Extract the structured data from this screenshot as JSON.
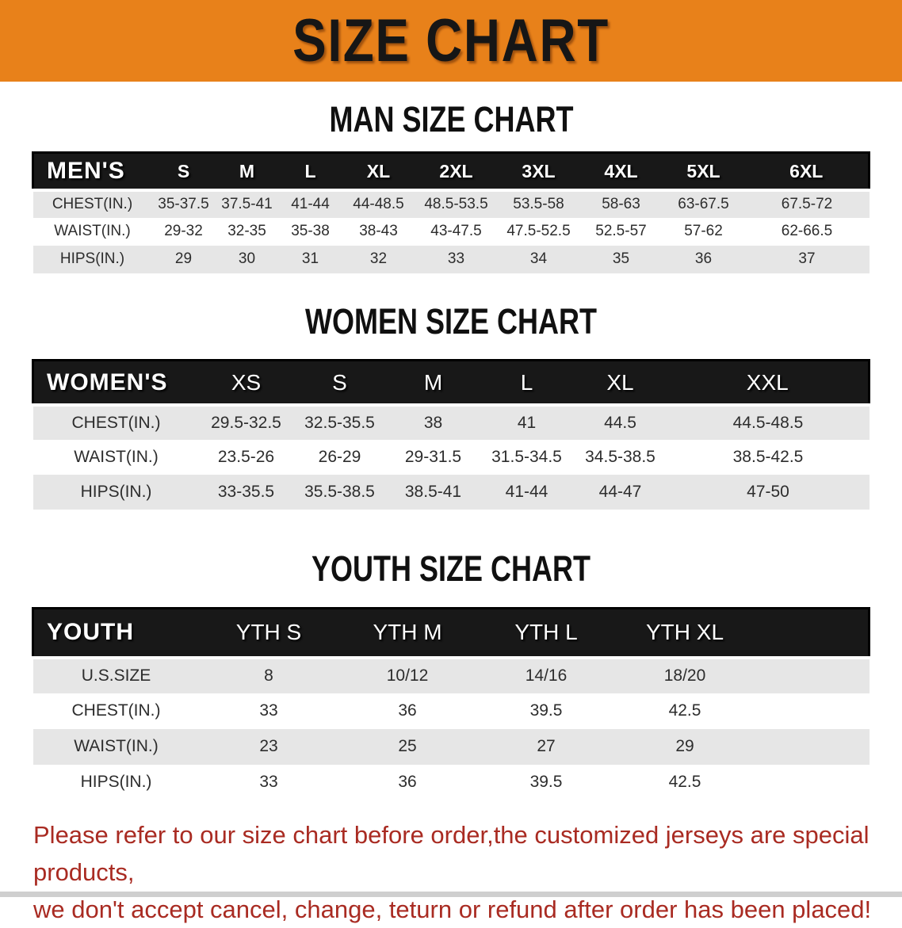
{
  "banner": {
    "title": "SIZE CHART"
  },
  "colors": {
    "banner_bg": "#E8811A",
    "header_bar": "#181818",
    "row_stripe": "#E6E6E6",
    "footer_text": "#A92B22"
  },
  "man_chart": {
    "heading": "MAN SIZE CHART",
    "columns": [
      "MEN'S",
      "S",
      "M",
      "L",
      "XL",
      "2XL",
      "3XL",
      "4XL",
      "5XL",
      "6XL"
    ],
    "rows": [
      {
        "label": "CHEST(IN.)",
        "values": [
          "35-37.5",
          "37.5-41",
          "41-44",
          "44-48.5",
          "48.5-53.5",
          "53.5-58",
          "58-63",
          "63-67.5",
          "67.5-72"
        ]
      },
      {
        "label": "WAIST(IN.)",
        "values": [
          "29-32",
          "32-35",
          "35-38",
          "38-43",
          "43-47.5",
          "47.5-52.5",
          "52.5-57",
          "57-62",
          "62-66.5"
        ]
      },
      {
        "label": "HIPS(IN.)",
        "values": [
          "29",
          "30",
          "31",
          "32",
          "33",
          "34",
          "35",
          "36",
          "37"
        ]
      }
    ]
  },
  "women_chart": {
    "heading": "WOMEN SIZE CHART",
    "columns": [
      "WOMEN'S",
      "XS",
      "S",
      "M",
      "L",
      "XL",
      "XXL"
    ],
    "rows": [
      {
        "label": "CHEST(IN.)",
        "values": [
          "29.5-32.5",
          "32.5-35.5",
          "38",
          "41",
          "44.5",
          "44.5-48.5"
        ]
      },
      {
        "label": "WAIST(IN.)",
        "values": [
          "23.5-26",
          "26-29",
          "29-31.5",
          "31.5-34.5",
          "34.5-38.5",
          "38.5-42.5"
        ]
      },
      {
        "label": "HIPS(IN.)",
        "values": [
          "33-35.5",
          "35.5-38.5",
          "38.5-41",
          "41-44",
          "44-47",
          "47-50"
        ]
      }
    ]
  },
  "youth_chart": {
    "heading": "YOUTH SIZE CHART",
    "columns": [
      "YOUTH",
      "YTH S",
      "YTH M",
      "YTH L",
      "YTH XL"
    ],
    "rows": [
      {
        "label": "U.S.SIZE",
        "values": [
          "8",
          "10/12",
          "14/16",
          "18/20"
        ]
      },
      {
        "label": "CHEST(IN.)",
        "values": [
          "33",
          "36",
          "39.5",
          "42.5"
        ]
      },
      {
        "label": "WAIST(IN.)",
        "values": [
          "23",
          "25",
          "27",
          "29"
        ]
      },
      {
        "label": "HIPS(IN.)",
        "values": [
          "33",
          "36",
          "39.5",
          "42.5"
        ]
      }
    ]
  },
  "footer": {
    "line1": "Please refer to our size chart before order,the customized jerseys are special products,",
    "line2": "we don't accept cancel, change, teturn or refund after order has been placed!"
  }
}
